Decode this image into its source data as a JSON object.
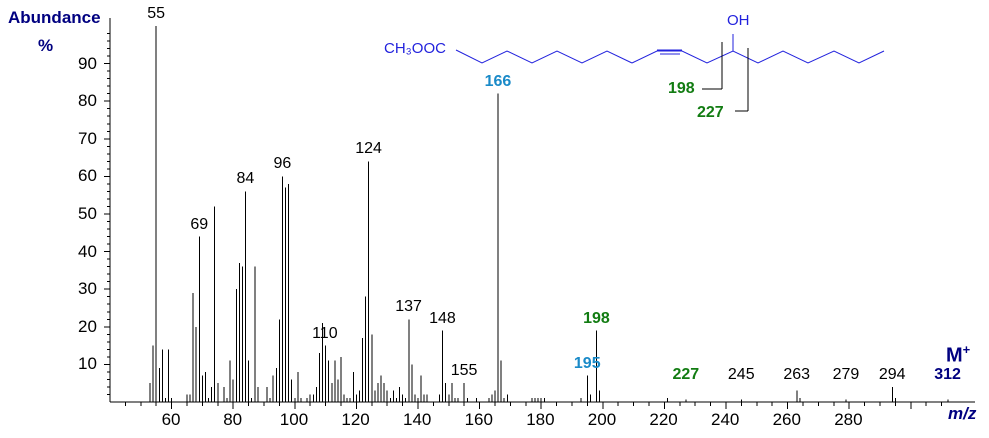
{
  "chart_data": {
    "type": "bar",
    "title": "",
    "xlabel": "m/z",
    "ylabel": "Abundance %",
    "xlim": [
      40,
      314
    ],
    "ylim": [
      0,
      100
    ],
    "x_ticks": [
      60,
      80,
      100,
      120,
      140,
      160,
      180,
      200,
      220,
      240,
      260,
      280
    ],
    "y_ticks": [
      10,
      20,
      30,
      40,
      50,
      60,
      70,
      80,
      90
    ],
    "grid": false,
    "molecular_ion_label": "M+",
    "structure": {
      "left_group": "CH3OOC",
      "hydroxyl": "OH",
      "cleavage_labels": [
        "198",
        "227"
      ]
    },
    "peaks": [
      {
        "mz": 53,
        "abundance": 5
      },
      {
        "mz": 54,
        "abundance": 15
      },
      {
        "mz": 55,
        "abundance": 100
      },
      {
        "mz": 56,
        "abundance": 9
      },
      {
        "mz": 57,
        "abundance": 14
      },
      {
        "mz": 58,
        "abundance": 1
      },
      {
        "mz": 59,
        "abundance": 14
      },
      {
        "mz": 60,
        "abundance": 1
      },
      {
        "mz": 65,
        "abundance": 2
      },
      {
        "mz": 66,
        "abundance": 2
      },
      {
        "mz": 67,
        "abundance": 29
      },
      {
        "mz": 68,
        "abundance": 20
      },
      {
        "mz": 69,
        "abundance": 44
      },
      {
        "mz": 70,
        "abundance": 7
      },
      {
        "mz": 71,
        "abundance": 8
      },
      {
        "mz": 72,
        "abundance": 1
      },
      {
        "mz": 73,
        "abundance": 4
      },
      {
        "mz": 74,
        "abundance": 52
      },
      {
        "mz": 75,
        "abundance": 5
      },
      {
        "mz": 77,
        "abundance": 4
      },
      {
        "mz": 78,
        "abundance": 1
      },
      {
        "mz": 79,
        "abundance": 11
      },
      {
        "mz": 80,
        "abundance": 6
      },
      {
        "mz": 81,
        "abundance": 30
      },
      {
        "mz": 82,
        "abundance": 37
      },
      {
        "mz": 83,
        "abundance": 36
      },
      {
        "mz": 84,
        "abundance": 56
      },
      {
        "mz": 85,
        "abundance": 11
      },
      {
        "mz": 86,
        "abundance": 1
      },
      {
        "mz": 87,
        "abundance": 36
      },
      {
        "mz": 88,
        "abundance": 4
      },
      {
        "mz": 91,
        "abundance": 4
      },
      {
        "mz": 92,
        "abundance": 1
      },
      {
        "mz": 93,
        "abundance": 7
      },
      {
        "mz": 94,
        "abundance": 9
      },
      {
        "mz": 95,
        "abundance": 22
      },
      {
        "mz": 96,
        "abundance": 60
      },
      {
        "mz": 97,
        "abundance": 57
      },
      {
        "mz": 98,
        "abundance": 58
      },
      {
        "mz": 99,
        "abundance": 6
      },
      {
        "mz": 100,
        "abundance": 1
      },
      {
        "mz": 101,
        "abundance": 8
      },
      {
        "mz": 102,
        "abundance": 1
      },
      {
        "mz": 104,
        "abundance": 1
      },
      {
        "mz": 105,
        "abundance": 2
      },
      {
        "mz": 106,
        "abundance": 2
      },
      {
        "mz": 107,
        "abundance": 4
      },
      {
        "mz": 108,
        "abundance": 13
      },
      {
        "mz": 109,
        "abundance": 21
      },
      {
        "mz": 110,
        "abundance": 15
      },
      {
        "mz": 111,
        "abundance": 11
      },
      {
        "mz": 112,
        "abundance": 5
      },
      {
        "mz": 113,
        "abundance": 11
      },
      {
        "mz": 114,
        "abundance": 6
      },
      {
        "mz": 115,
        "abundance": 12
      },
      {
        "mz": 116,
        "abundance": 2
      },
      {
        "mz": 117,
        "abundance": 1
      },
      {
        "mz": 118,
        "abundance": 1
      },
      {
        "mz": 119,
        "abundance": 8
      },
      {
        "mz": 120,
        "abundance": 2
      },
      {
        "mz": 121,
        "abundance": 3
      },
      {
        "mz": 122,
        "abundance": 17
      },
      {
        "mz": 123,
        "abundance": 28
      },
      {
        "mz": 124,
        "abundance": 64
      },
      {
        "mz": 125,
        "abundance": 18
      },
      {
        "mz": 126,
        "abundance": 3
      },
      {
        "mz": 127,
        "abundance": 5
      },
      {
        "mz": 128,
        "abundance": 7
      },
      {
        "mz": 129,
        "abundance": 5
      },
      {
        "mz": 130,
        "abundance": 3
      },
      {
        "mz": 131,
        "abundance": 1
      },
      {
        "mz": 132,
        "abundance": 3
      },
      {
        "mz": 133,
        "abundance": 1
      },
      {
        "mz": 134,
        "abundance": 4
      },
      {
        "mz": 135,
        "abundance": 2
      },
      {
        "mz": 136,
        "abundance": 1
      },
      {
        "mz": 137,
        "abundance": 22
      },
      {
        "mz": 138,
        "abundance": 10
      },
      {
        "mz": 139,
        "abundance": 2
      },
      {
        "mz": 140,
        "abundance": 1
      },
      {
        "mz": 141,
        "abundance": 7
      },
      {
        "mz": 142,
        "abundance": 2
      },
      {
        "mz": 143,
        "abundance": 2
      },
      {
        "mz": 147,
        "abundance": 2
      },
      {
        "mz": 148,
        "abundance": 19
      },
      {
        "mz": 149,
        "abundance": 5
      },
      {
        "mz": 150,
        "abundance": 2
      },
      {
        "mz": 151,
        "abundance": 5
      },
      {
        "mz": 152,
        "abundance": 1
      },
      {
        "mz": 153,
        "abundance": 1
      },
      {
        "mz": 155,
        "abundance": 5
      },
      {
        "mz": 156,
        "abundance": 1
      },
      {
        "mz": 159,
        "abundance": 1
      },
      {
        "mz": 163,
        "abundance": 1
      },
      {
        "mz": 164,
        "abundance": 2
      },
      {
        "mz": 165,
        "abundance": 3
      },
      {
        "mz": 166,
        "abundance": 82
      },
      {
        "mz": 167,
        "abundance": 11
      },
      {
        "mz": 168,
        "abundance": 1
      },
      {
        "mz": 169,
        "abundance": 2
      },
      {
        "mz": 177,
        "abundance": 1
      },
      {
        "mz": 178,
        "abundance": 1
      },
      {
        "mz": 179,
        "abundance": 1
      },
      {
        "mz": 180,
        "abundance": 1
      },
      {
        "mz": 181,
        "abundance": 1
      },
      {
        "mz": 193,
        "abundance": 1
      },
      {
        "mz": 195,
        "abundance": 7
      },
      {
        "mz": 196,
        "abundance": 2
      },
      {
        "mz": 198,
        "abundance": 19
      },
      {
        "mz": 199,
        "abundance": 3
      },
      {
        "mz": 221,
        "abundance": 1
      },
      {
        "mz": 227,
        "abundance": 0.5
      },
      {
        "mz": 245,
        "abundance": 0.5
      },
      {
        "mz": 263,
        "abundance": 3
      },
      {
        "mz": 264,
        "abundance": 1
      },
      {
        "mz": 279,
        "abundance": 0.5
      },
      {
        "mz": 294,
        "abundance": 4
      },
      {
        "mz": 295,
        "abundance": 1
      },
      {
        "mz": 312,
        "abundance": 0.2
      }
    ],
    "annotations": [
      {
        "text": "55",
        "mz": 55,
        "color": "black"
      },
      {
        "text": "69",
        "mz": 69,
        "color": "black"
      },
      {
        "text": "84",
        "mz": 84,
        "color": "black"
      },
      {
        "text": "96",
        "mz": 96,
        "color": "black"
      },
      {
        "text": "110",
        "mz": 110,
        "color": "black"
      },
      {
        "text": "124",
        "mz": 124,
        "color": "black"
      },
      {
        "text": "137",
        "mz": 137,
        "color": "black"
      },
      {
        "text": "148",
        "mz": 148,
        "color": "black"
      },
      {
        "text": "155",
        "mz": 155,
        "color": "black"
      },
      {
        "text": "166",
        "mz": 166,
        "color": "blue"
      },
      {
        "text": "195",
        "mz": 195,
        "color": "blue"
      },
      {
        "text": "198",
        "mz": 198,
        "color": "green"
      },
      {
        "text": "227",
        "mz": 227,
        "color": "green"
      },
      {
        "text": "245",
        "mz": 245,
        "color": "black"
      },
      {
        "text": "263",
        "mz": 263,
        "color": "black"
      },
      {
        "text": "279",
        "mz": 279,
        "color": "black"
      },
      {
        "text": "294",
        "mz": 294,
        "color": "black"
      },
      {
        "text": "312",
        "mz": 312,
        "color": "navy"
      }
    ]
  },
  "labels": {
    "y_title": "Abundance",
    "y_unit": "%",
    "x_title": "m/z",
    "molecular_ion": "M",
    "molecular_ion_sup": "+",
    "structure_left": "CH₃OOC",
    "structure_oh": "OH",
    "frag_198": "198",
    "frag_227": "227"
  }
}
